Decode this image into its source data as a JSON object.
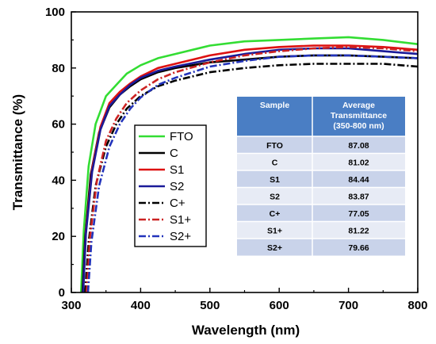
{
  "chart_data": {
    "type": "line",
    "title": "",
    "xlabel": "Wavelength (nm)",
    "ylabel": "Transmittance (%)",
    "xlim": [
      300,
      800
    ],
    "ylim": [
      0,
      100
    ],
    "xticks": [
      "300",
      "400",
      "500",
      "600",
      "700",
      "800"
    ],
    "yticks": [
      "0",
      "20",
      "40",
      "60",
      "80",
      "100"
    ],
    "grid": false,
    "legend_position": "center-left",
    "series": [
      {
        "name": "FTO",
        "color": "#33dd33",
        "dash": "solid",
        "x": [
          314,
          318,
          325,
          335,
          350,
          365,
          380,
          400,
          425,
          450,
          500,
          550,
          600,
          650,
          700,
          750,
          800
        ],
        "y": [
          0,
          22,
          45,
          60,
          70,
          74,
          78,
          81,
          83.5,
          85,
          88,
          89.5,
          90,
          90.5,
          91,
          90,
          88.5
        ]
      },
      {
        "name": "C",
        "color": "#000000",
        "dash": "solid",
        "x": [
          316,
          320,
          328,
          340,
          355,
          370,
          385,
          400,
          425,
          450,
          500,
          550,
          600,
          650,
          700,
          750,
          800
        ],
        "y": [
          0,
          20,
          42,
          57,
          66,
          70.5,
          73.5,
          76,
          78.5,
          80,
          82,
          83,
          84,
          84.5,
          84.5,
          84,
          83.5
        ]
      },
      {
        "name": "S1",
        "color": "#dd1111",
        "dash": "solid",
        "x": [
          317,
          321,
          330,
          342,
          355,
          370,
          385,
          400,
          425,
          450,
          500,
          550,
          600,
          650,
          700,
          750,
          800
        ],
        "y": [
          0,
          22,
          44,
          59,
          67.5,
          71.5,
          74.5,
          77,
          80,
          81.5,
          84.5,
          86.5,
          87.5,
          88,
          88,
          87.5,
          86.5
        ]
      },
      {
        "name": "S2",
        "color": "#1a1a99",
        "dash": "solid",
        "x": [
          317,
          321,
          330,
          342,
          355,
          370,
          385,
          400,
          425,
          450,
          500,
          550,
          600,
          650,
          700,
          750,
          800
        ],
        "y": [
          0,
          21,
          43,
          58,
          66.5,
          70.5,
          74,
          76.5,
          79,
          80.5,
          83,
          85,
          86.5,
          87,
          87,
          86,
          85
        ]
      },
      {
        "name": "C+",
        "color": "#000000",
        "dash": "dashdot",
        "x": [
          320,
          325,
          335,
          350,
          365,
          380,
          400,
          425,
          450,
          500,
          550,
          600,
          650,
          700,
          750,
          800
        ],
        "y": [
          0,
          18,
          38,
          52,
          60,
          65.5,
          70,
          73.5,
          75.5,
          78.5,
          80,
          81,
          81.5,
          81.5,
          81.5,
          80.5
        ]
      },
      {
        "name": "S1+",
        "color": "#cc2222",
        "dash": "dashdot",
        "x": [
          322,
          327,
          337,
          350,
          365,
          380,
          400,
          425,
          450,
          500,
          550,
          600,
          650,
          700,
          750,
          800
        ],
        "y": [
          0,
          20,
          40,
          54,
          62,
          67.5,
          72,
          76,
          78.5,
          82,
          84.5,
          86,
          87,
          87.5,
          87,
          86
        ]
      },
      {
        "name": "S2+",
        "color": "#2233bb",
        "dash": "dashdot",
        "x": [
          324,
          329,
          340,
          355,
          370,
          385,
          400,
          425,
          450,
          500,
          550,
          600,
          650,
          700,
          750,
          800
        ],
        "y": [
          0,
          18,
          38,
          52,
          60,
          65.5,
          69.5,
          74,
          76.5,
          80.5,
          82.5,
          84,
          84.5,
          84.5,
          84,
          83.5
        ]
      }
    ],
    "table": {
      "headers": [
        "Sample",
        "Average Transmittance (350-800 nm)"
      ],
      "header_lines": [
        [
          "Sample"
        ],
        [
          "Average",
          "Transmittance",
          "(350-800 nm)"
        ]
      ],
      "header_color": "#4a7ec4",
      "row_colors": [
        "#c9d3ea",
        "#e7ebf5"
      ],
      "rows": [
        [
          "FTO",
          "87.08"
        ],
        [
          "C",
          "81.02"
        ],
        [
          "S1",
          "84.44"
        ],
        [
          "S2",
          "83.87"
        ],
        [
          "C+",
          "77.05"
        ],
        [
          "S1+",
          "81.22"
        ],
        [
          "S2+",
          "79.66"
        ]
      ]
    }
  }
}
